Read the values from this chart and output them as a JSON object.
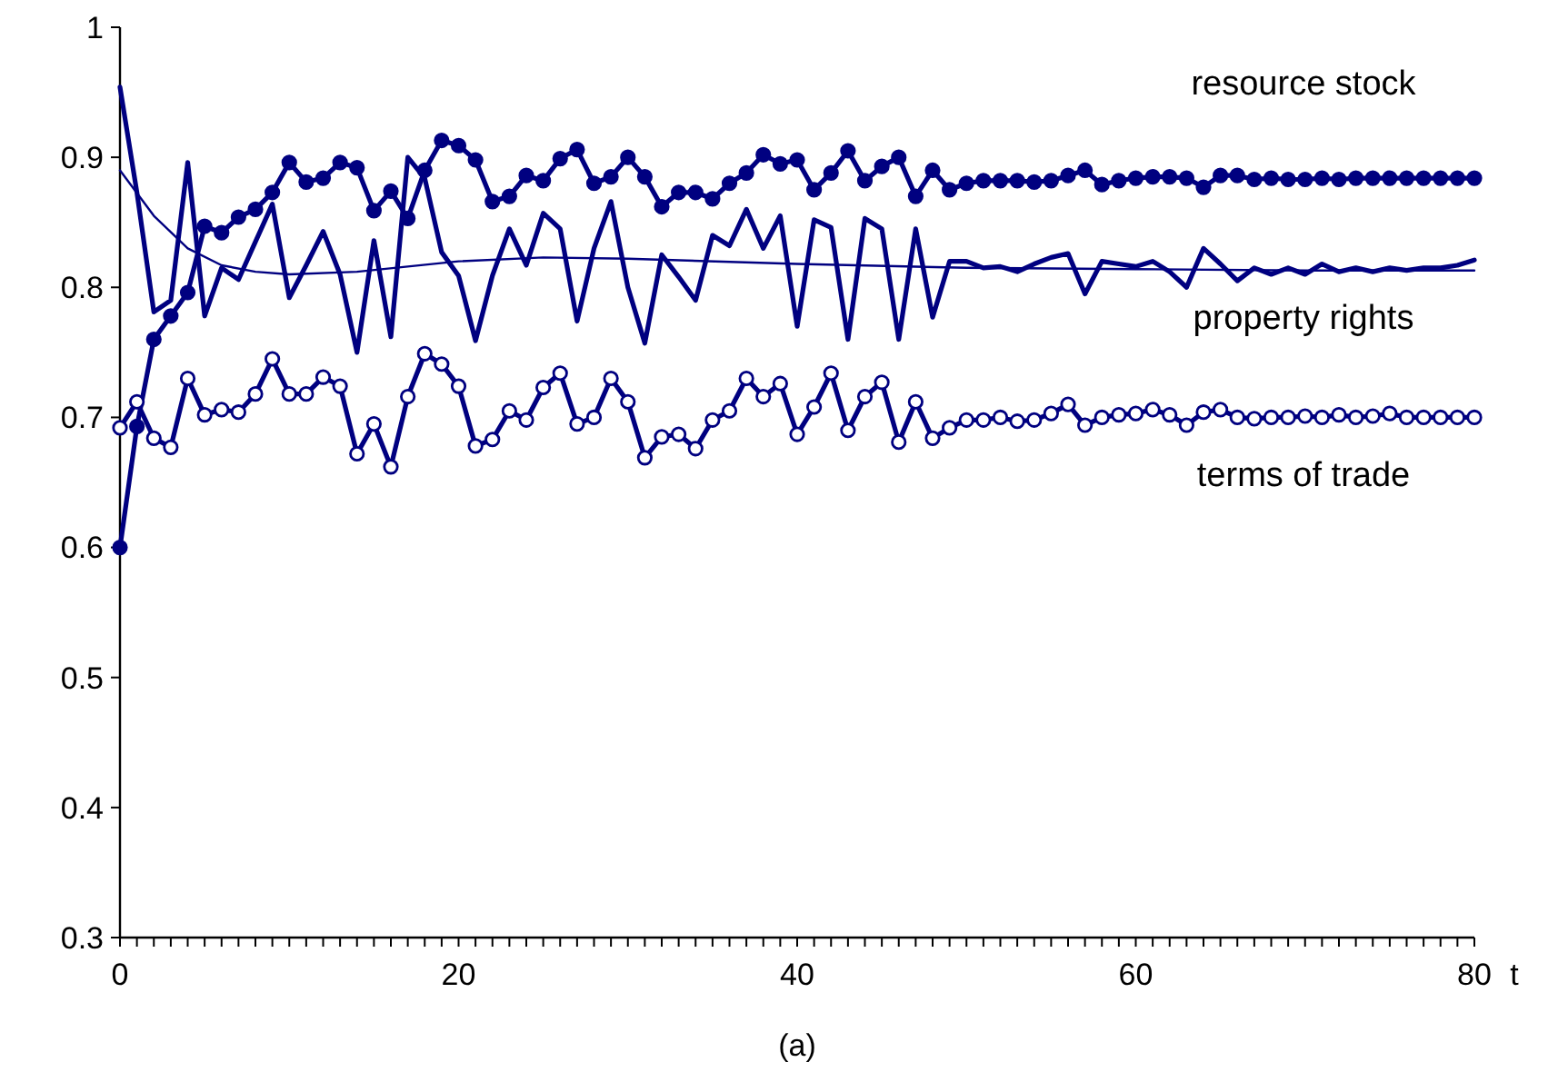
{
  "chart_data": {
    "type": "line",
    "xlabel": "t",
    "annotations": [
      "(a)"
    ],
    "xlim": [
      0,
      80
    ],
    "ylim": [
      0.3,
      1
    ],
    "xticks": [
      0,
      {
        "value": 1,
        "label": null
      },
      {
        "value": 2,
        "label": null
      },
      {
        "value": 3,
        "label": null
      },
      {
        "value": 4,
        "label": null
      },
      {
        "value": 5,
        "label": null
      },
      {
        "value": 6,
        "label": null
      },
      {
        "value": 7,
        "label": null
      },
      {
        "value": 8,
        "label": null
      },
      {
        "value": 9,
        "label": null
      },
      {
        "value": 10,
        "label": null
      },
      {
        "value": 11,
        "label": null
      },
      {
        "value": 12,
        "label": null
      },
      {
        "value": 13,
        "label": null
      },
      {
        "value": 14,
        "label": null
      },
      {
        "value": 15,
        "label": null
      },
      {
        "value": 16,
        "label": null
      },
      {
        "value": 17,
        "label": null
      },
      {
        "value": 18,
        "label": null
      },
      {
        "value": 19,
        "label": null
      },
      20,
      {
        "value": 21,
        "label": null
      },
      {
        "value": 22,
        "label": null
      },
      {
        "value": 23,
        "label": null
      },
      {
        "value": 24,
        "label": null
      },
      {
        "value": 25,
        "label": null
      },
      {
        "value": 26,
        "label": null
      },
      {
        "value": 27,
        "label": null
      },
      {
        "value": 28,
        "label": null
      },
      {
        "value": 29,
        "label": null
      },
      {
        "value": 30,
        "label": null
      },
      {
        "value": 31,
        "label": null
      },
      {
        "value": 32,
        "label": null
      },
      {
        "value": 33,
        "label": null
      },
      {
        "value": 34,
        "label": null
      },
      {
        "value": 35,
        "label": null
      },
      {
        "value": 36,
        "label": null
      },
      {
        "value": 37,
        "label": null
      },
      {
        "value": 38,
        "label": null
      },
      {
        "value": 39,
        "label": null
      },
      40,
      {
        "value": 41,
        "label": null
      },
      {
        "value": 42,
        "label": null
      },
      {
        "value": 43,
        "label": null
      },
      {
        "value": 44,
        "label": null
      },
      {
        "value": 45,
        "label": null
      },
      {
        "value": 46,
        "label": null
      },
      {
        "value": 47,
        "label": null
      },
      {
        "value": 48,
        "label": null
      },
      {
        "value": 49,
        "label": null
      },
      {
        "value": 50,
        "label": null
      },
      {
        "value": 51,
        "label": null
      },
      {
        "value": 52,
        "label": null
      },
      {
        "value": 53,
        "label": null
      },
      {
        "value": 54,
        "label": null
      },
      {
        "value": 55,
        "label": null
      },
      {
        "value": 56,
        "label": null
      },
      {
        "value": 57,
        "label": null
      },
      {
        "value": 58,
        "label": null
      },
      {
        "value": 59,
        "label": null
      },
      60,
      {
        "value": 61,
        "label": null
      },
      {
        "value": 62,
        "label": null
      },
      {
        "value": 63,
        "label": null
      },
      {
        "value": 64,
        "label": null
      },
      {
        "value": 65,
        "label": null
      },
      {
        "value": 66,
        "label": null
      },
      {
        "value": 67,
        "label": null
      },
      {
        "value": 68,
        "label": null
      },
      {
        "value": 69,
        "label": null
      },
      {
        "value": 70,
        "label": null
      },
      {
        "value": 71,
        "label": null
      },
      {
        "value": 72,
        "label": null
      },
      {
        "value": 73,
        "label": null
      },
      {
        "value": 74,
        "label": null
      },
      {
        "value": 75,
        "label": null
      },
      {
        "value": 76,
        "label": null
      },
      {
        "value": 77,
        "label": null
      },
      {
        "value": 78,
        "label": null
      },
      {
        "value": 79,
        "label": null
      },
      80
    ],
    "yticks": [
      0.3,
      0.4,
      0.5,
      0.6,
      0.7,
      0.8,
      0.9,
      1
    ],
    "grid": false,
    "x": [
      0,
      1,
      2,
      3,
      4,
      5,
      6,
      7,
      8,
      9,
      10,
      11,
      12,
      13,
      14,
      15,
      16,
      17,
      18,
      19,
      20,
      21,
      22,
      23,
      24,
      25,
      26,
      27,
      28,
      29,
      30,
      31,
      32,
      33,
      34,
      35,
      36,
      37,
      38,
      39,
      40,
      41,
      42,
      43,
      44,
      45,
      46,
      47,
      48,
      49,
      50,
      51,
      52,
      53,
      54,
      55,
      56,
      57,
      58,
      59,
      60,
      61,
      62,
      63,
      64,
      65,
      66,
      67,
      68,
      69,
      70,
      71,
      72,
      73,
      74,
      75,
      76,
      77,
      78,
      79,
      80
    ],
    "series": [
      {
        "name": "resource stock",
        "color": "#000080",
        "marker": "circle",
        "values": [
          0.6,
          0.693,
          0.76,
          0.778,
          0.796,
          0.847,
          0.842,
          0.854,
          0.86,
          0.873,
          0.896,
          0.881,
          0.884,
          0.896,
          0.892,
          0.859,
          0.874,
          0.853,
          0.89,
          0.913,
          0.909,
          0.898,
          0.866,
          0.87,
          0.886,
          0.882,
          0.899,
          0.906,
          0.88,
          0.885,
          0.9,
          0.885,
          0.862,
          0.873,
          0.873,
          0.868,
          0.88,
          0.888,
          0.902,
          0.895,
          0.898,
          0.875,
          0.888,
          0.905,
          0.882,
          0.893,
          0.9,
          0.87,
          0.89,
          0.875,
          0.88,
          0.882,
          0.882,
          0.882,
          0.881,
          0.882,
          0.886,
          0.89,
          0.879,
          0.882,
          0.884,
          0.885,
          0.885,
          0.884,
          0.877,
          0.886,
          0.886,
          0.883,
          0.884,
          0.883,
          0.883,
          0.884,
          0.883,
          0.884,
          0.884,
          0.884,
          0.884,
          0.884,
          0.884,
          0.884,
          0.884
        ]
      },
      {
        "name": "property rights",
        "color": "#000080",
        "marker": "none",
        "values": [
          0.954,
          0.873,
          0.781,
          0.79,
          0.896,
          0.778,
          0.815,
          0.806,
          0.835,
          0.864,
          0.792,
          0.817,
          0.843,
          0.81,
          0.75,
          0.836,
          0.762,
          0.9,
          0.884,
          0.827,
          0.809,
          0.759,
          0.809,
          0.845,
          0.817,
          0.857,
          0.845,
          0.774,
          0.83,
          0.866,
          0.8,
          0.757,
          0.825,
          0.808,
          0.79,
          0.84,
          0.832,
          0.86,
          0.83,
          0.855,
          0.77,
          0.852,
          0.846,
          0.76,
          0.853,
          0.845,
          0.76,
          0.845,
          0.777,
          0.82,
          0.82,
          0.815,
          0.816,
          0.812,
          0.818,
          0.823,
          0.826,
          0.795,
          0.82,
          0.818,
          0.816,
          0.82,
          0.812,
          0.8,
          0.83,
          0.818,
          0.805,
          0.815,
          0.81,
          0.815,
          0.81,
          0.818,
          0.812,
          0.815,
          0.812,
          0.815,
          0.813,
          0.815,
          0.815,
          0.817,
          0.821
        ]
      },
      {
        "color": "#000080",
        "marker": "none",
        "x": [
          0,
          2,
          4,
          6,
          8,
          10,
          14,
          20,
          25,
          30,
          40,
          50,
          60,
          70,
          80
        ],
        "values": [
          0.89,
          0.855,
          0.83,
          0.817,
          0.812,
          0.81,
          0.812,
          0.82,
          0.823,
          0.822,
          0.818,
          0.815,
          0.814,
          0.813,
          0.813
        ]
      },
      {
        "name": "terms of trade",
        "color": "#000080",
        "marker": "circle",
        "values": [
          0.692,
          0.712,
          0.684,
          0.677,
          0.73,
          0.702,
          0.706,
          0.704,
          0.718,
          0.745,
          0.718,
          0.718,
          0.731,
          0.724,
          0.672,
          0.695,
          0.662,
          0.716,
          0.749,
          0.741,
          0.724,
          0.678,
          0.683,
          0.705,
          0.698,
          0.723,
          0.734,
          0.695,
          0.7,
          0.73,
          0.712,
          0.669,
          0.685,
          0.687,
          0.676,
          0.698,
          0.705,
          0.73,
          0.716,
          0.726,
          0.687,
          0.708,
          0.734,
          0.69,
          0.716,
          0.727,
          0.681,
          0.712,
          0.684,
          0.692,
          0.698,
          0.698,
          0.7,
          0.697,
          0.698,
          0.703,
          0.71,
          0.694,
          0.7,
          0.702,
          0.703,
          0.706,
          0.702,
          0.694,
          0.704,
          0.706,
          0.7,
          0.699,
          0.7,
          0.7,
          0.701,
          0.7,
          0.702,
          0.7,
          0.701,
          0.703,
          0.7,
          0.7,
          0.7,
          0.7,
          0.7
        ]
      }
    ]
  }
}
